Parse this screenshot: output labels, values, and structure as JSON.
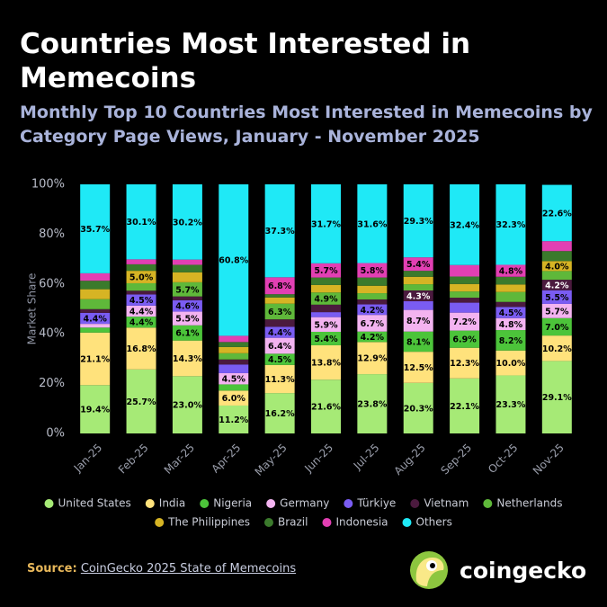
{
  "chart_data": {
    "type": "stacked_bar",
    "title": "Countries Most Interested in Memecoins",
    "subtitle": "Monthly Top 10 Countries Most Interested in Memecoins by Category Page Views, January - November 2025",
    "y_label": "Market Share",
    "categories": [
      "Jan-25",
      "Feb-25",
      "Mar-25",
      "Apr-25",
      "May-25",
      "Jun-25",
      "Jul-25",
      "Aug-25",
      "Sep-25",
      "Oct-25",
      "Nov-25"
    ],
    "ylim": [
      0,
      100
    ],
    "yticks": [
      {
        "value": 0,
        "label": "0%"
      },
      {
        "value": 20,
        "label": "20%"
      },
      {
        "value": 40,
        "label": "40%"
      },
      {
        "value": 60,
        "label": "60%"
      },
      {
        "value": 80,
        "label": "80%"
      },
      {
        "value": 100,
        "label": "100%"
      }
    ],
    "series": [
      {
        "name": "United States",
        "color": "#a6ea76",
        "values": [
          19.4,
          25.7,
          23.0,
          11.2,
          16.2,
          21.6,
          23.8,
          20.3,
          22.1,
          23.3,
          29.1
        ],
        "value_labels": [
          "19.4%",
          "25.7%",
          "23.0%",
          "11.2%",
          "16.2%",
          "21.6%",
          "23.8%",
          "20.3%",
          "22.1%",
          "23.3%",
          "29.1%"
        ]
      },
      {
        "name": "India",
        "color": "#ffe27c",
        "values": [
          21.1,
          16.8,
          14.3,
          6.0,
          11.3,
          13.8,
          12.9,
          12.5,
          12.3,
          10.0,
          10.2
        ],
        "value_labels": [
          "21.1%",
          "16.8%",
          "14.3%",
          "6.0%",
          "11.3%",
          "13.8%",
          "12.9%",
          "12.5%",
          "12.3%",
          "10.0%",
          "10.2%"
        ]
      },
      {
        "name": "Nigeria",
        "color": "#4cc43a",
        "values": [
          2,
          4.4,
          6.1,
          2.5,
          4.5,
          5.4,
          4.2,
          8.1,
          6.9,
          8.2,
          7.0
        ],
        "value_labels": [
          null,
          "4.4%",
          "6.1%",
          null,
          "4.5%",
          "5.4%",
          "4.2%",
          "8.1%",
          "6.9%",
          "8.2%",
          "7.0%"
        ]
      },
      {
        "name": "Germany",
        "color": "#f3b3f0",
        "values": [
          1.5,
          4.4,
          5.5,
          4.5,
          6.4,
          5.9,
          6.7,
          8.7,
          7.2,
          4.8,
          5.7
        ],
        "value_labels": [
          null,
          "4.4%",
          "5.5%",
          "4.5%",
          "6.4%",
          "5.9%",
          "6.7%",
          "8.7%",
          "7.2%",
          "4.8%",
          "5.7%"
        ]
      },
      {
        "name": "Türkiye",
        "color": "#7a5cf2",
        "values": [
          4.4,
          4.5,
          4.6,
          3.5,
          4.4,
          2,
          4.2,
          3.5,
          4,
          4.5,
          5.5
        ],
        "value_labels": [
          "4.4%",
          "4.5%",
          "4.6%",
          null,
          "4.4%",
          null,
          "4.2%",
          null,
          null,
          "4.5%",
          "5.5%"
        ]
      },
      {
        "name": "Vietnam",
        "color": "#4b1a3e",
        "values": [
          1.5,
          1.5,
          1.5,
          2,
          3,
          3,
          2,
          4.3,
          2,
          2,
          4.2
        ],
        "value_labels": [
          null,
          null,
          null,
          null,
          null,
          null,
          null,
          "4.3%",
          null,
          null,
          "4.2%"
        ]
      },
      {
        "name": "Netherlands",
        "color": "#5fb83a",
        "values": [
          4,
          3,
          5.7,
          2.5,
          6.3,
          4.9,
          2.5,
          2.5,
          2.5,
          4,
          3.5
        ],
        "value_labels": [
          null,
          null,
          "5.7%",
          null,
          "6.3%",
          "4.9%",
          null,
          null,
          null,
          null,
          null
        ]
      },
      {
        "name": "The Philippines",
        "color": "#d6b424",
        "values": [
          4,
          5.0,
          4,
          2.5,
          2.5,
          3,
          3,
          3,
          3,
          3,
          4.0
        ],
        "value_labels": [
          null,
          "5.0%",
          null,
          null,
          null,
          null,
          null,
          null,
          null,
          null,
          "4.0%"
        ]
      },
      {
        "name": "Brazil",
        "color": "#3b7a2c",
        "values": [
          3.4,
          2.6,
          3,
          2,
          1.3,
          3,
          3.3,
          2.4,
          3,
          3.1,
          4
        ],
        "value_labels": [
          null,
          null,
          null,
          null,
          null,
          null,
          null,
          null,
          null,
          null,
          null
        ]
      },
      {
        "name": "Indonesia",
        "color": "#e23fb3",
        "values": [
          3,
          2,
          2.1,
          2.5,
          6.8,
          5.7,
          5.8,
          5.4,
          4.6,
          4.8,
          4
        ],
        "value_labels": [
          null,
          null,
          null,
          null,
          "6.8%",
          "5.7%",
          "5.8%",
          "5.4%",
          null,
          "4.8%",
          null
        ]
      },
      {
        "name": "Others",
        "color": "#1fe9f6",
        "values": [
          35.7,
          30.1,
          30.2,
          60.8,
          37.3,
          31.7,
          31.6,
          29.3,
          32.4,
          32.3,
          22.6
        ],
        "value_labels": [
          "35.7%",
          "30.1%",
          "30.2%",
          "60.8%",
          "37.3%",
          "31.7%",
          "31.6%",
          "29.3%",
          "32.4%",
          "32.3%",
          "22.6%"
        ]
      }
    ],
    "source_label": "Source:",
    "source_text": "CoinGecko 2025 State of Memecoins",
    "logo_text": "coingecko"
  }
}
